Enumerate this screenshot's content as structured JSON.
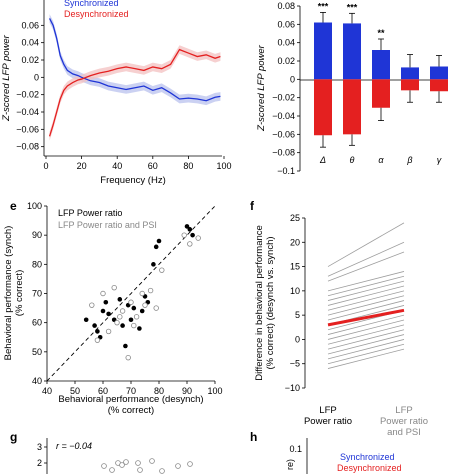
{
  "chart_data": [
    {
      "type": "line",
      "xlabel": "Frequency (Hz)",
      "ylabel": "Z-scored LFP power",
      "xlim": [
        0,
        100
      ],
      "ylim": [
        -0.1,
        0.08
      ],
      "x_ticks": [
        0,
        20,
        40,
        60,
        80,
        100
      ],
      "y_ticks": [
        0.06,
        0.04,
        0.02,
        0,
        -0.02,
        -0.04,
        -0.06,
        -0.08,
        -0.1
      ],
      "legend": [
        "Synchronized",
        "Desynchronized"
      ],
      "series": [
        {
          "name": "Synchronized",
          "color": "#1f35d6",
          "x": [
            2,
            4,
            6,
            8,
            10,
            12,
            15,
            18,
            20,
            25,
            30,
            35,
            40,
            45,
            50,
            55,
            60,
            65,
            70,
            75,
            80,
            85,
            90,
            95,
            98
          ],
          "y": [
            0.068,
            0.06,
            0.045,
            0.025,
            0.015,
            0.008,
            0.004,
            0.002,
            0.0,
            -0.004,
            -0.006,
            -0.01,
            -0.012,
            -0.014,
            -0.012,
            -0.01,
            -0.015,
            -0.012,
            -0.018,
            -0.025,
            -0.024,
            -0.025,
            -0.027,
            -0.023,
            -0.022
          ]
        },
        {
          "name": "Desynchronized",
          "color": "#e42020",
          "x": [
            2,
            4,
            6,
            8,
            10,
            12,
            15,
            18,
            20,
            25,
            30,
            35,
            40,
            45,
            50,
            55,
            60,
            65,
            70,
            75,
            80,
            85,
            90,
            95,
            98
          ],
          "y": [
            -0.068,
            -0.055,
            -0.04,
            -0.025,
            -0.015,
            -0.01,
            -0.006,
            -0.003,
            -0.002,
            0.002,
            0.005,
            0.007,
            0.01,
            0.012,
            0.01,
            0.008,
            0.012,
            0.01,
            0.015,
            0.032,
            0.028,
            0.024,
            0.026,
            0.022,
            0.024
          ]
        }
      ]
    },
    {
      "type": "bar",
      "ylabel": "Z-scored LFP power",
      "ylim": [
        -0.1,
        0.08
      ],
      "y_ticks": [
        0.08,
        0.06,
        0.04,
        0.02,
        0,
        -0.02,
        -0.04,
        -0.06,
        -0.08,
        -0.1
      ],
      "categories": [
        "Δ",
        "θ",
        "α",
        "β",
        "γ"
      ],
      "significance": [
        "***",
        "***",
        "**",
        "",
        ""
      ],
      "series": [
        {
          "name": "Synchronized",
          "color": "#1f35d6",
          "values": [
            0.062,
            0.061,
            0.032,
            0.013,
            0.014
          ],
          "errors": [
            0.011,
            0.011,
            0.012,
            0.014,
            0.012
          ]
        },
        {
          "name": "Desynchronized",
          "color": "#e42020",
          "values": [
            -0.061,
            -0.06,
            -0.031,
            -0.012,
            -0.013
          ],
          "errors": [
            0.013,
            0.012,
            0.014,
            0.013,
            0.012
          ]
        }
      ]
    },
    {
      "type": "scatter",
      "panel_label": "e",
      "xlabel": "Behavioral performance (desynch)",
      "xlabel2": "(% correct)",
      "ylabel": "Behavioral performance (synch)",
      "ylabel2": "(% correct)",
      "xlim": [
        40,
        100
      ],
      "ylim": [
        40,
        100
      ],
      "x_ticks": [
        40,
        50,
        60,
        70,
        80,
        90,
        100
      ],
      "y_ticks": [
        40,
        50,
        60,
        70,
        80,
        90,
        100
      ],
      "legend": [
        "LFP Power ratio",
        "LFP Power ratio and PSI"
      ],
      "series": [
        {
          "name": "LFP Power ratio",
          "color": "#000000",
          "x": [
            54,
            57,
            58,
            59,
            60,
            61,
            62,
            64,
            66,
            67,
            68,
            69,
            70,
            71,
            73,
            74,
            75,
            76,
            78,
            79,
            80,
            90,
            91,
            92
          ],
          "y": [
            61,
            59,
            57,
            55,
            64,
            67,
            63,
            61,
            68,
            59,
            52,
            66,
            61,
            65,
            58,
            64,
            69,
            67,
            80,
            86,
            88,
            93,
            92,
            90
          ],
          "open": false
        },
        {
          "name": "LFP Power ratio and PSI",
          "color": "#888888",
          "x": [
            56,
            58,
            60,
            62,
            64,
            65,
            66,
            67,
            69,
            70,
            71,
            72,
            74,
            75,
            77,
            79,
            81,
            89,
            91,
            94
          ],
          "y": [
            66,
            54,
            70,
            57,
            72,
            60,
            62,
            64,
            48,
            67,
            59,
            62,
            70,
            66,
            71,
            65,
            78,
            90,
            87,
            89
          ],
          "open": true
        }
      ]
    },
    {
      "type": "line",
      "panel_label": "f",
      "ylabel": "Difference in behavioral performance",
      "ylabel2": "(% correct) (desynch vs. synch)",
      "ylim": [
        -10,
        25
      ],
      "y_ticks": [
        25,
        20,
        15,
        10,
        5,
        0,
        -5,
        -10
      ],
      "categories": [
        "LFP Power ratio",
        "LFP Power ratio and PSI"
      ],
      "pairs": [
        [
          15,
          24
        ],
        [
          13,
          20
        ],
        [
          12,
          18
        ],
        [
          10,
          14
        ],
        [
          9,
          13
        ],
        [
          8,
          12
        ],
        [
          7,
          11
        ],
        [
          6,
          10
        ],
        [
          5,
          9
        ],
        [
          4,
          8
        ],
        [
          3,
          7
        ],
        [
          2,
          6
        ],
        [
          1,
          5
        ],
        [
          0,
          4
        ],
        [
          -1,
          3
        ],
        [
          -2,
          2
        ],
        [
          -3,
          1
        ],
        [
          -4,
          0
        ],
        [
          -5,
          -1
        ],
        [
          -6,
          -2
        ]
      ],
      "mean": [
        3,
        6
      ],
      "mean_color": "#e42020"
    },
    {
      "type": "scatter",
      "panel_label": "g",
      "annotation": "r = −0.04",
      "y_ticks": [
        3,
        2
      ]
    },
    {
      "type": "line",
      "panel_label": "h",
      "y_ticks": [
        0.1
      ],
      "legend": [
        "Synchronized",
        "Desynchronized"
      ]
    }
  ]
}
